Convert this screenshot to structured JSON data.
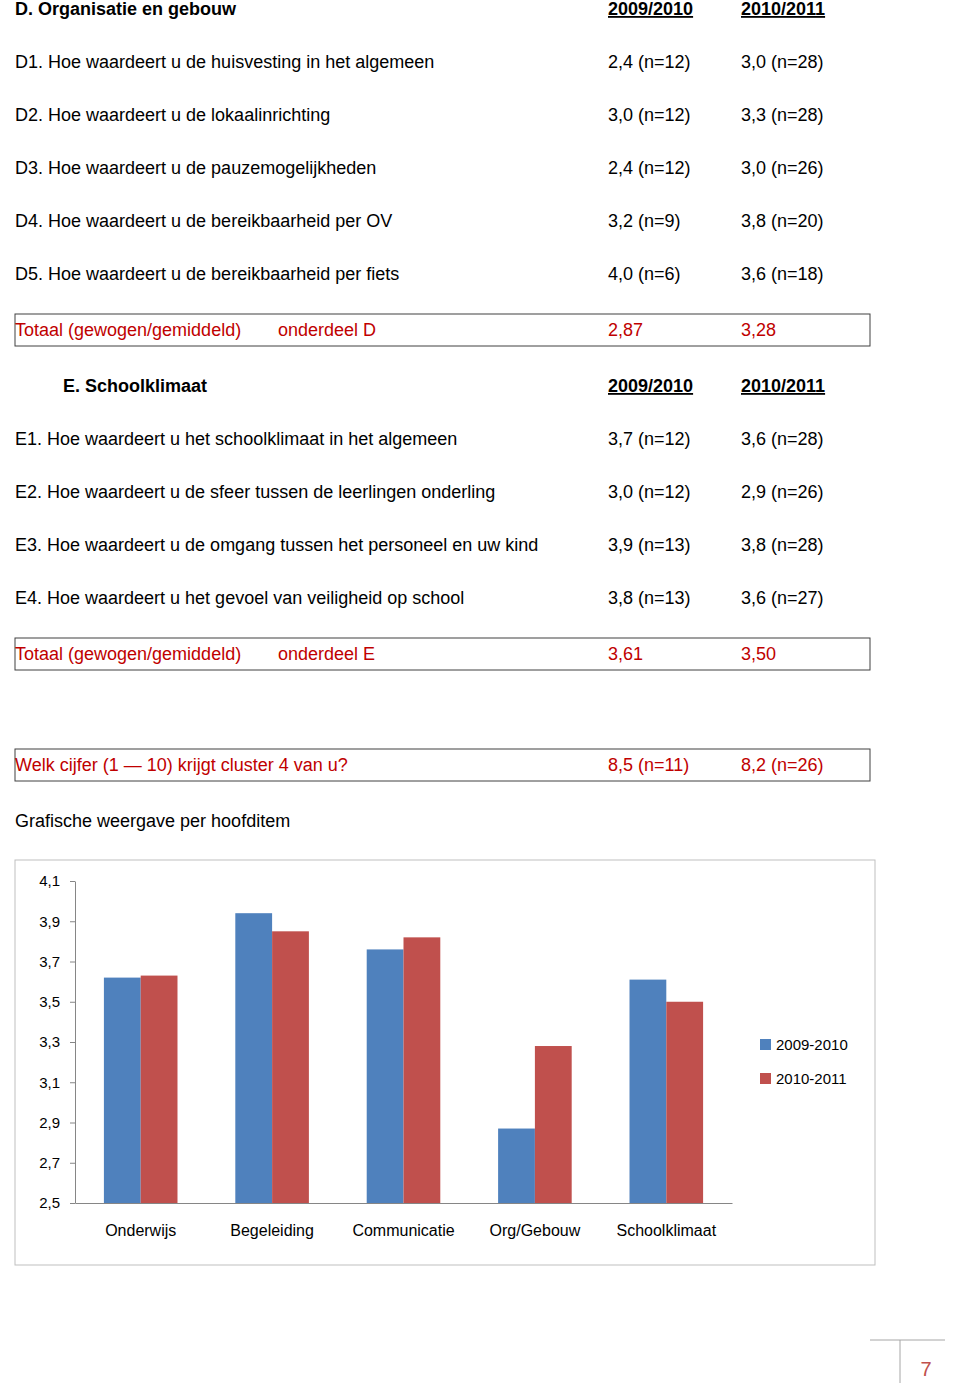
{
  "sections": [
    {
      "heading": "D.  Organisatie en gebouw",
      "columns": [
        "2009/2010",
        "2010/2011"
      ],
      "rows": [
        [
          "D1. Hoe waardeert u de huisvesting in het algemeen",
          "2,4 (n=12)",
          "3,0 (n=28)"
        ],
        [
          "D2. Hoe waardeert u de lokaalinrichting",
          "3,0 (n=12)",
          "3,3 (n=28)"
        ],
        [
          "D3. Hoe waardeert u de pauzemogelijkheden",
          "2,4 (n=12)",
          "3,0 (n=26)"
        ],
        [
          "D4. Hoe waardeert u de bereikbaarheid per OV",
          "3,2 (n=9)",
          "3,8 (n=20)"
        ],
        [
          "D5. Hoe waardeert u de bereikbaarheid per fiets",
          "4,0 (n=6)",
          "3,6 (n=18)"
        ]
      ],
      "total": [
        "Totaal (gewogen/gemiddeld)",
        "onderdeel D",
        "2,87",
        "3,28"
      ]
    },
    {
      "heading": "E.  Schoolklimaat",
      "columns": [
        "2009/2010",
        "2010/2011"
      ],
      "rows": [
        [
          "E1. Hoe waardeert u het schoolklimaat in het algemeen",
          "3,7 (n=12)",
          "3,6 (n=28)"
        ],
        [
          "E2. Hoe waardeert u de sfeer tussen de leerlingen onderling",
          "3,0 (n=12)",
          "2,9 (n=26)"
        ],
        [
          "E3. Hoe waardeert u de omgang tussen het personeel en uw kind",
          "3,9 (n=13)",
          "3,8 (n=28)"
        ],
        [
          "E4. Hoe waardeert u het gevoel van veiligheid op school",
          "3,8 (n=13)",
          "3,6 (n=27)"
        ]
      ],
      "total": [
        "Totaal (gewogen/gemiddeld)",
        "onderdeel E",
        "3,61",
        "3,50"
      ]
    }
  ],
  "overall": [
    "Welk cijfer (1 — 10) krijgt cluster 4 van u?",
    "8,5 (n=11)",
    "8,2 (n=26)"
  ],
  "chart_heading": "Grafische weergave per hoofditem",
  "chart_data": {
    "type": "bar",
    "categories": [
      "Onderwijs",
      "Begeleiding",
      "Communicatie",
      "Org/Gebouw",
      "Schoolklimaat"
    ],
    "series": [
      {
        "name": "2009-2010",
        "color": "#4f81bd",
        "values": [
          3.62,
          3.94,
          3.76,
          2.87,
          3.61
        ]
      },
      {
        "name": "2010-2011",
        "color": "#c0504d",
        "values": [
          3.63,
          3.85,
          3.82,
          3.28,
          3.5
        ]
      }
    ],
    "ylim": [
      2.5,
      4.1
    ],
    "yticks": [
      {
        "value": 2.5,
        "label": "2,5"
      },
      {
        "value": 2.7,
        "label": "2,7"
      },
      {
        "value": 2.9,
        "label": "2,9"
      },
      {
        "value": 3.1,
        "label": "3,1"
      },
      {
        "value": 3.3,
        "label": "3,3"
      },
      {
        "value": 3.5,
        "label": "3,5"
      },
      {
        "value": 3.7,
        "label": "3,7"
      },
      {
        "value": 3.9,
        "label": "3,9"
      },
      {
        "value": 4.1,
        "label": "4,1"
      }
    ],
    "grid": false,
    "legend": "right"
  },
  "page_number": "7"
}
